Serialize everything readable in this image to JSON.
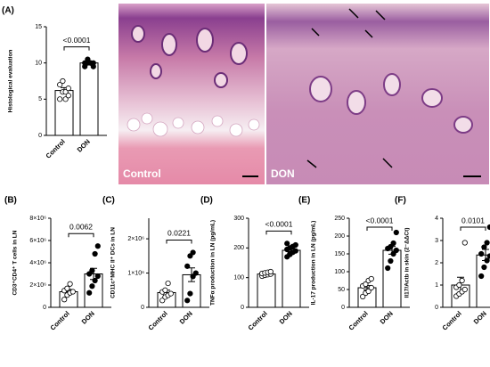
{
  "chart_data": [
    {
      "type": "bar",
      "panel": "(A)",
      "ylabel": "Histological evaluation",
      "categories": [
        "Control",
        "DON"
      ],
      "values": [
        6.2,
        10
      ],
      "errors": [
        0.4,
        0.15
      ],
      "points": [
        [
          5,
          6,
          6,
          6.5,
          7,
          7.5,
          5,
          5.5
        ],
        [
          9.5,
          10,
          10,
          10,
          10,
          10.5,
          10,
          9.5
        ]
      ],
      "marker_fill": [
        "#ffffff",
        "#000000"
      ],
      "p_value": "<0.0001",
      "ylim": [
        0,
        15
      ],
      "yticks": [
        0,
        5,
        10,
        15
      ]
    },
    {
      "type": "bar",
      "panel": "(B)",
      "ylabel": "CD3⁺CD4⁺ T cells in LN",
      "categories": [
        "Control",
        "DON"
      ],
      "values": [
        1400000,
        3000000
      ],
      "errors": [
        200000,
        500000
      ],
      "points": [
        [
          700000,
          1100000,
          1300000,
          1400000,
          1500000,
          1700000,
          2100000
        ],
        [
          1300000,
          1900000,
          2400000,
          2800000,
          3000000,
          3300000,
          4800000,
          5500000
        ]
      ],
      "marker_fill": [
        "#ffffff",
        "#000000"
      ],
      "p_value": "0.0062",
      "ylim": [
        0,
        8000000
      ],
      "yticks": [
        0,
        {
          "value": 2000000,
          "label": "2×10⁶"
        },
        {
          "value": 4000000,
          "label": "4×10⁶"
        },
        {
          "value": 6000000,
          "label": "6×10⁶"
        },
        {
          "value": 8000000,
          "label": "8×10⁶"
        }
      ]
    },
    {
      "type": "bar",
      "panel": "(C)",
      "ylabel": "CD11c⁺MHC II⁺ DCs in LN",
      "categories": [
        "Control",
        "DON"
      ],
      "values": [
        430000,
        950000
      ],
      "errors": [
        70000,
        200000
      ],
      "points": [
        [
          200000,
          300000,
          350000,
          400000,
          450000,
          500000,
          700000
        ],
        [
          200000,
          400000,
          900000,
          1000000,
          1200000,
          1500000,
          1600000
        ]
      ],
      "marker_fill": [
        "#ffffff",
        "#000000"
      ],
      "p_value": "0.0221",
      "ylim": [
        0,
        2600000
      ],
      "yticks": [
        0,
        {
          "value": 1000000,
          "label": "1×10⁶"
        },
        {
          "value": 2000000,
          "label": "2×10⁶"
        }
      ]
    },
    {
      "type": "bar",
      "panel": "(D)",
      "ylabel": "TNFα production in LN (pg/mL)",
      "categories": [
        "Control",
        "DON"
      ],
      "values": [
        112,
        192
      ],
      "errors": [
        2,
        4
      ],
      "points": [
        [
          105,
          108,
          110,
          112,
          114,
          116,
          118,
          120
        ],
        [
          170,
          178,
          185,
          190,
          195,
          200,
          205,
          210,
          215,
          180
        ]
      ],
      "marker_fill": [
        "#ffffff",
        "#000000"
      ],
      "p_value": "<0.0001",
      "ylim": [
        0,
        300
      ],
      "yticks": [
        0,
        100,
        200,
        300
      ]
    },
    {
      "type": "bar",
      "panel": "(E)",
      "ylabel": "IL-17 production in LN (pg/mL)",
      "categories": [
        "Control",
        "DON"
      ],
      "values": [
        55,
        160
      ],
      "errors": [
        6,
        11
      ],
      "points": [
        [
          30,
          40,
          45,
          55,
          60,
          65,
          75,
          80
        ],
        [
          110,
          130,
          150,
          160,
          165,
          170,
          180,
          210
        ]
      ],
      "marker_fill": [
        "#ffffff",
        "#000000"
      ],
      "p_value": "<0.0001",
      "ylim": [
        0,
        250
      ],
      "yticks": [
        0,
        50,
        100,
        150,
        200,
        250
      ]
    },
    {
      "type": "bar",
      "panel": "(F)",
      "ylabel": "Il17/Actb in skin (2⁻ΔΔCt)",
      "categories": [
        "Control",
        "DON"
      ],
      "values": [
        1.0,
        2.35
      ],
      "errors": [
        0.35,
        0.25
      ],
      "points": [
        [
          0.5,
          0.6,
          0.7,
          0.8,
          0.9,
          1.0,
          1.2,
          2.9
        ],
        [
          1.4,
          1.8,
          2.1,
          2.3,
          2.4,
          2.7,
          2.9,
          3.6
        ]
      ],
      "marker_fill": [
        "#ffffff",
        "#000000"
      ],
      "p_value": "0.0101",
      "ylim": [
        0,
        4
      ],
      "yticks": [
        0,
        1,
        2,
        3,
        4
      ]
    }
  ],
  "images": [
    {
      "label": "Control"
    },
    {
      "label": "DON"
    }
  ]
}
